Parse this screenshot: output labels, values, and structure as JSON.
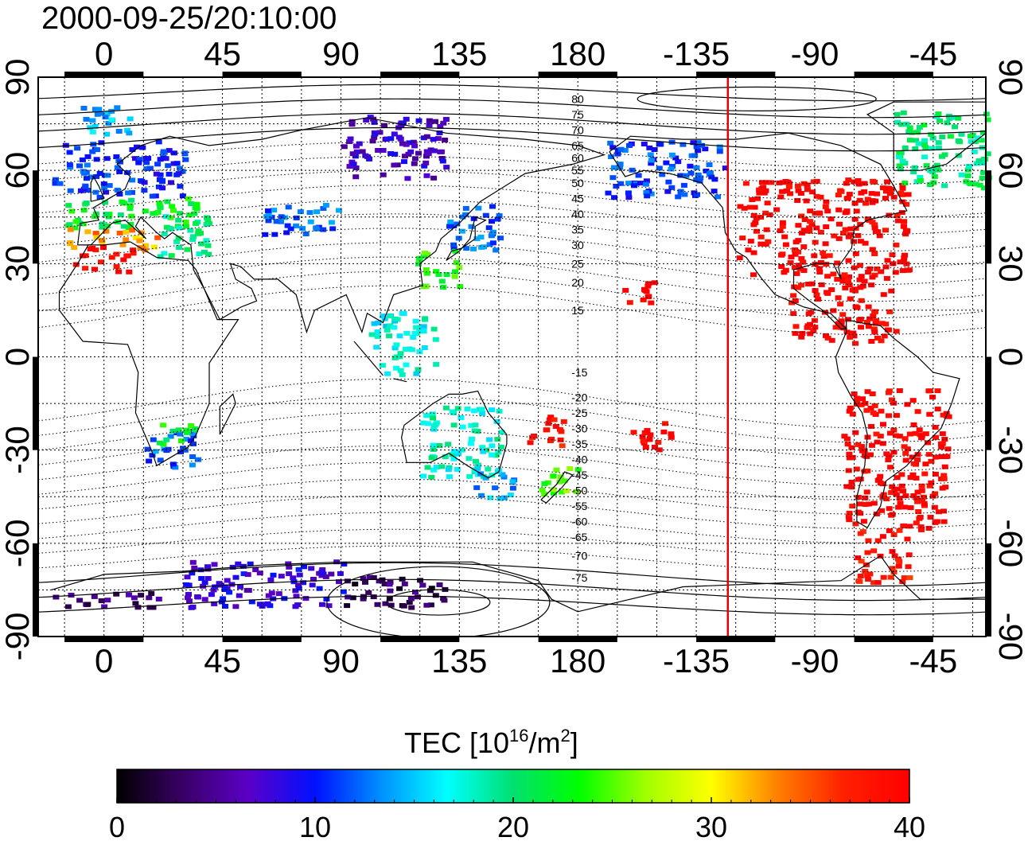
{
  "title": "2000-09-25/20:10:00",
  "colors": {
    "terminator": "#e00000",
    "frame": "#000000",
    "grid": "#000000",
    "background": "#ffffff"
  },
  "map": {
    "lon_min": -25,
    "lon_max": 335,
    "lat_min": -90,
    "lat_max": 90,
    "terminator_lon": 237,
    "grid": true
  },
  "axes": {
    "top_ticks": [
      {
        "lon": 0,
        "label": "0"
      },
      {
        "lon": 45,
        "label": "45"
      },
      {
        "lon": 90,
        "label": "90"
      },
      {
        "lon": 135,
        "label": "135"
      },
      {
        "lon": 180,
        "label": "180"
      },
      {
        "lon": 225,
        "label": "-135"
      },
      {
        "lon": 270,
        "label": "-90"
      },
      {
        "lon": 315,
        "label": "-45"
      }
    ],
    "lat_ticks": [
      {
        "lat": 90,
        "label": "90"
      },
      {
        "lat": 60,
        "label": "60"
      },
      {
        "lat": 30,
        "label": "30"
      },
      {
        "lat": 0,
        "label": "0"
      },
      {
        "lat": -30,
        "label": "-30"
      },
      {
        "lat": -60,
        "label": "-60"
      },
      {
        "lat": -90,
        "label": "-90"
      }
    ]
  },
  "contour_labels": [
    {
      "text": "80",
      "lat": 83
    },
    {
      "text": "75",
      "lat": 78
    },
    {
      "text": "70",
      "lat": 73
    },
    {
      "text": "65",
      "lat": 68
    },
    {
      "text": "60",
      "lat": 64
    },
    {
      "text": "55",
      "lat": 60
    },
    {
      "text": "50",
      "lat": 56
    },
    {
      "text": "45",
      "lat": 51
    },
    {
      "text": "40",
      "lat": 46
    },
    {
      "text": "35",
      "lat": 41
    },
    {
      "text": "30",
      "lat": 36
    },
    {
      "text": "25",
      "lat": 30
    },
    {
      "text": "20",
      "lat": 24
    },
    {
      "text": "15",
      "lat": 15
    },
    {
      "text": "-15",
      "lat": -5
    },
    {
      "text": "-20",
      "lat": -13
    },
    {
      "text": "-25",
      "lat": -18
    },
    {
      "text": "-30",
      "lat": -23
    },
    {
      "text": "-35",
      "lat": -28
    },
    {
      "text": "-40",
      "lat": -33
    },
    {
      "text": "-45",
      "lat": -38
    },
    {
      "text": "-50",
      "lat": -43
    },
    {
      "text": "-55",
      "lat": -48
    },
    {
      "text": "-60",
      "lat": -53
    },
    {
      "text": "-65",
      "lat": -58
    },
    {
      "text": "-70",
      "lat": -64
    },
    {
      "text": "-75",
      "lat": -71
    }
  ],
  "colorbar": {
    "title_prefix": "TEC  [10",
    "title_exp1": "16",
    "title_mid": "/m",
    "title_exp2": "2",
    "title_suffix": "]",
    "min": 0,
    "max": 40,
    "ticks": [
      {
        "value": 0,
        "label": "0"
      },
      {
        "value": 10,
        "label": "10"
      },
      {
        "value": 20,
        "label": "20"
      },
      {
        "value": 30,
        "label": "30"
      },
      {
        "value": 40,
        "label": "40"
      }
    ],
    "stops": [
      "#000000",
      "#3a0066",
      "#5a00c8",
      "#0010ff",
      "#0090ff",
      "#00ffff",
      "#00e070",
      "#00ff00",
      "#a0ff00",
      "#ffff00",
      "#ff8000",
      "#ff2000",
      "#ff0000"
    ]
  },
  "tec_regions": [
    {
      "lon": [
        -20,
        30
      ],
      "lat": [
        52,
        70
      ],
      "tec": 10.5
    },
    {
      "lon": [
        -15,
        35
      ],
      "lat": [
        42,
        52
      ],
      "tec": 22
    },
    {
      "lon": [
        -15,
        20
      ],
      "lat": [
        35,
        42
      ],
      "tec": 33
    },
    {
      "lon": [
        -12,
        10
      ],
      "lat": [
        28,
        36
      ],
      "tec": 39
    },
    {
      "lon": [
        20,
        40
      ],
      "lat": [
        33,
        47
      ],
      "tec": 19
    },
    {
      "lon": [
        -10,
        10
      ],
      "lat": [
        72,
        82
      ],
      "tec": 15
    },
    {
      "lon": [
        60,
        90
      ],
      "lat": [
        40,
        50
      ],
      "tec": 12
    },
    {
      "lon": [
        90,
        130
      ],
      "lat": [
        58,
        78
      ],
      "tec": 7
    },
    {
      "lon": [
        130,
        150
      ],
      "lat": [
        35,
        50
      ],
      "tec": 12
    },
    {
      "lon": [
        118,
        135
      ],
      "lat": [
        23,
        35
      ],
      "tec": 24
    },
    {
      "lon": [
        100,
        125
      ],
      "lat": [
        -5,
        15
      ],
      "tec": 17
    },
    {
      "lon": [
        120,
        150
      ],
      "lat": [
        -38,
        -15
      ],
      "tec": 18
    },
    {
      "lon": [
        140,
        155
      ],
      "lat": [
        -45,
        -35
      ],
      "tec": 14
    },
    {
      "lon": [
        165,
        180
      ],
      "lat": [
        -45,
        -35
      ],
      "tec": 25
    },
    {
      "lon": [
        160,
        175
      ],
      "lat": [
        -28,
        -18
      ],
      "tec": 38
    },
    {
      "lon": [
        15,
        35
      ],
      "lat": [
        -35,
        -23
      ],
      "tec": 12
    },
    {
      "lon": [
        20,
        35
      ],
      "lat": [
        -28,
        -20
      ],
      "tec": 22
    },
    {
      "lon": [
        190,
        235
      ],
      "lat": [
        52,
        70
      ],
      "tec": 11
    },
    {
      "lon": [
        240,
        305
      ],
      "lat": [
        25,
        58
      ],
      "tec": 40
    },
    {
      "lon": [
        260,
        300
      ],
      "lat": [
        5,
        25
      ],
      "tec": 40
    },
    {
      "lon": [
        280,
        320
      ],
      "lat": [
        -55,
        -10
      ],
      "tec": 40
    },
    {
      "lon": [
        285,
        305
      ],
      "lat": [
        -72,
        -55
      ],
      "tec": 38
    },
    {
      "lon": [
        195,
        210
      ],
      "lat": [
        18,
        25
      ],
      "tec": 40
    },
    {
      "lon": [
        200,
        215
      ],
      "lat": [
        -30,
        -20
      ],
      "tec": 40
    },
    {
      "lon": [
        -20,
        20
      ],
      "lat": [
        -80,
        -75
      ],
      "tec": 4
    },
    {
      "lon": [
        30,
        90
      ],
      "lat": [
        -80,
        -65
      ],
      "tec": 8
    },
    {
      "lon": [
        90,
        130
      ],
      "lat": [
        -80,
        -70
      ],
      "tec": 3
    },
    {
      "lon": [
        300,
        335
      ],
      "lat": [
        55,
        80
      ],
      "tec": 20
    }
  ]
}
